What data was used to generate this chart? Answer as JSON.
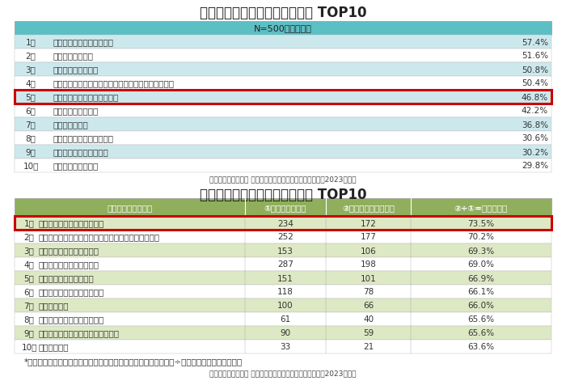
{
  "title1": "冬の体調管理で行っていること TOP10",
  "subtitle1": "N=500・複数回答",
  "table1_rows": [
    [
      "1位",
      "うがい・手洗いを徹底する",
      "57.4%"
    ],
    [
      "2位",
      "マスクを着用する",
      "51.6%"
    ],
    [
      "3位",
      "温かい飲み物を飲む",
      "50.8%"
    ],
    [
      "4位",
      "厚着やあったかグッズ（靴下、マフラーなど）を使う",
      "50.4%"
    ],
    [
      "5位",
      "入浴をする（湯船につかる）",
      "46.8%"
    ],
    [
      "6位",
      "睐眠をしっかりとる",
      "42.2%"
    ],
    [
      "7位",
      "エアコンを使う",
      "36.8%"
    ],
    [
      "8位",
      "ストーブ・ヒーターを使う",
      "30.6%"
    ],
    [
      "9位",
      "運動やストレッチを行う",
      "30.2%"
    ],
    [
      "10位",
      "日差しを取り入れる",
      "29.8%"
    ]
  ],
  "table1_highlight_row": 4,
  "source1": "積水ハウス株式会社 住生活研究所「入浴に関する調査　（2023年）」",
  "title2": "冬の体調管理対策の効果実感率 TOP10",
  "table2_headers": [
    "冬の体調管理の対策",
    "①行っている人数",
    "②効果を実感した人数",
    "②÷①=効果実感率"
  ],
  "table2_rows": [
    [
      "1位",
      "入浴をする（湯船につかる）",
      "234",
      "172",
      "73.5%"
    ],
    [
      "2位",
      "厚着やあったかグッズ（靴下、マフラーなど）を使う",
      "252",
      "177",
      "70.2%"
    ],
    [
      "3位",
      "ストーブ・ヒーターを使う",
      "153",
      "106",
      "69.3%"
    ],
    [
      "4位",
      "うがい・手洗いを徹底する",
      "287",
      "198",
      "69.0%"
    ],
    [
      "5位",
      "運動やストレッチを行う",
      "151",
      "101",
      "66.9%"
    ],
    [
      "6位",
      "衣類やカイロ等で体を温める",
      "118",
      "78",
      "66.1%"
    ],
    [
      "7位",
      "こたつを使う",
      "100",
      "66",
      "66.0%"
    ],
    [
      "8位",
      "電気毛布や電気あんかを使う",
      "61",
      "40",
      "65.6%"
    ],
    [
      "9位",
      "生姜など体を温める食品を摄取する",
      "90",
      "59",
      "65.6%"
    ],
    [
      "10位",
      "床暖房を使う",
      "33",
      "21",
      "63.6%"
    ]
  ],
  "table2_highlight_row": 0,
  "source2": "積水ハウス株式会社 住生活研究所「入浴に関する調査　（2023年）」",
  "note2": "*効果実感率の算出方法：各対策の「効果を実感できていること」÷「行っていること」の割合",
  "header_bg": "#5bbfc4",
  "row_bg_even": "#cce8ec",
  "row_bg_odd": "#ffffff",
  "highlight_border": "#cc0000",
  "table2_header_bg": "#8faf5c",
  "table2_row_bg_even": "#dde8c4",
  "table2_row_bg_odd": "#ffffff",
  "title_color": "#222222",
  "text_color": "#333333"
}
